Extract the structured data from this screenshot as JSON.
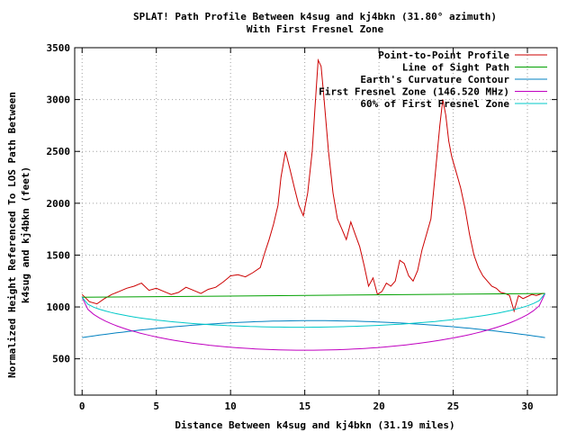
{
  "chart_data": {
    "type": "line",
    "title": "SPLAT! Path Profile Between k4sug and kj4bkn (31.80° azimuth)",
    "subtitle": "With First Fresnel Zone",
    "xlabel": "Distance Between k4sug and kj4bkn (31.19 miles)",
    "ylabel": [
      "Normalized Height Referenced To LOS Path Between",
      "k4sug and kj4bkn (feet)"
    ],
    "xlim": [
      -0.5,
      32
    ],
    "ylim": [
      150,
      3500
    ],
    "xticks": [
      0,
      5,
      10,
      15,
      20,
      25,
      30
    ],
    "yticks": [
      500,
      1000,
      1500,
      2000,
      2500,
      3000,
      3500
    ],
    "grid": true,
    "legend_position": "top-right",
    "series": [
      {
        "name": "Point-to-Point Profile",
        "color": "#cc0000",
        "x": [
          0,
          0.5,
          1,
          1.5,
          2,
          2.5,
          3,
          3.5,
          4,
          4.5,
          5,
          5.5,
          6,
          6.5,
          7,
          7.5,
          8,
          8.5,
          9,
          9.5,
          10,
          10.5,
          11,
          11.5,
          12,
          12.3,
          12.6,
          12.9,
          13.2,
          13.4,
          13.7,
          14,
          14.3,
          14.6,
          14.9,
          15.2,
          15.5,
          15.7,
          15.9,
          16.1,
          16.3,
          16.6,
          16.9,
          17.2,
          17.5,
          17.8,
          18.1,
          18.4,
          18.7,
          19,
          19.3,
          19.6,
          19.9,
          20.2,
          20.5,
          20.8,
          21.1,
          21.4,
          21.7,
          22,
          22.3,
          22.6,
          22.9,
          23.2,
          23.5,
          23.8,
          24.1,
          24.3,
          24.5,
          24.7,
          24.9,
          25.2,
          25.5,
          25.8,
          26.1,
          26.4,
          26.7,
          27,
          27.3,
          27.6,
          27.9,
          28.2,
          28.5,
          28.8,
          29.1,
          29.4,
          29.7,
          30,
          30.3,
          30.6,
          31,
          31.19
        ],
        "y": [
          1120,
          1050,
          1030,
          1080,
          1120,
          1150,
          1180,
          1200,
          1230,
          1160,
          1180,
          1150,
          1120,
          1140,
          1190,
          1160,
          1130,
          1170,
          1190,
          1240,
          1300,
          1310,
          1290,
          1330,
          1380,
          1520,
          1650,
          1800,
          1980,
          2250,
          2500,
          2330,
          2150,
          1980,
          1880,
          2100,
          2500,
          2950,
          3380,
          3320,
          3000,
          2500,
          2100,
          1850,
          1750,
          1650,
          1820,
          1700,
          1580,
          1400,
          1200,
          1280,
          1120,
          1150,
          1230,
          1200,
          1250,
          1450,
          1420,
          1300,
          1250,
          1350,
          1550,
          1700,
          1850,
          2300,
          2750,
          3000,
          2850,
          2600,
          2450,
          2300,
          2150,
          1950,
          1700,
          1500,
          1380,
          1300,
          1250,
          1200,
          1180,
          1140,
          1130,
          1110,
          960,
          1110,
          1080,
          1100,
          1120,
          1110,
          1130,
          1130
        ]
      },
      {
        "name": "Line of Sight Path",
        "color": "#00a000",
        "x": [
          0,
          31.19
        ],
        "y": [
          1093,
          1130
        ]
      },
      {
        "name": "Earth's Curvature Contour",
        "color": "#0080c0",
        "curve": "arc",
        "x_range": [
          0,
          31.19
        ],
        "y_ends": [
          705,
          705
        ],
        "y_mid": 868
      },
      {
        "name": "First Fresnel Zone (146.520 MHz)",
        "color": "#c000c0",
        "curve": "lower-ellipse",
        "x_range": [
          0,
          31.19
        ],
        "y_ends": [
          1093,
          1130
        ],
        "y_mid": 583
      },
      {
        "name": "60% of First Fresnel Zone",
        "color": "#00c8c8",
        "curve": "lower-ellipse",
        "x_range": [
          0,
          31.19
        ],
        "y_ends": [
          1093,
          1130
        ],
        "y_mid": 805
      }
    ]
  }
}
